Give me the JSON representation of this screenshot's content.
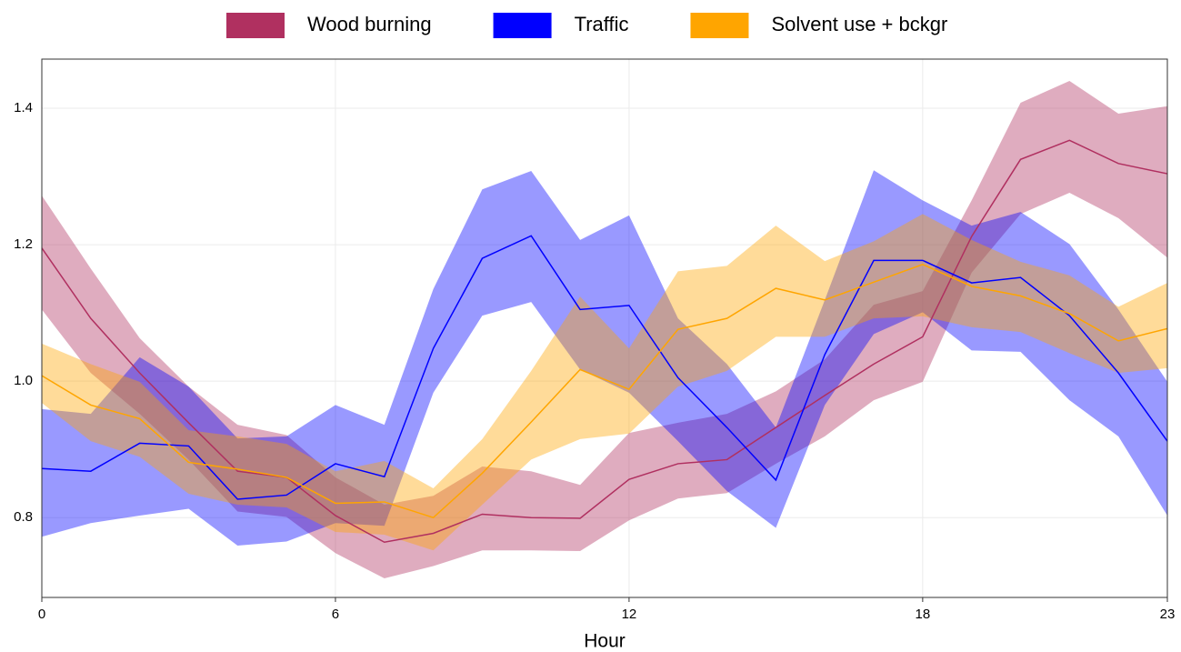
{
  "chart_data": {
    "type": "line-band",
    "xlabel": "Hour",
    "x": [
      0,
      1,
      2,
      3,
      4,
      5,
      6,
      7,
      8,
      9,
      10,
      11,
      12,
      13,
      14,
      15,
      16,
      17,
      18,
      19,
      20,
      21,
      22,
      23
    ],
    "xlim": [
      0,
      23
    ],
    "xticks": [
      0,
      6,
      12,
      18,
      23
    ],
    "ylim": [
      0.683,
      1.472
    ],
    "yticks": [
      {
        "value": 0.8,
        "label": "0.8"
      },
      {
        "value": 1.0,
        "label": "1.0"
      },
      {
        "value": 1.2,
        "label": "1.2"
      },
      {
        "value": 1.4,
        "label": "1.4"
      }
    ],
    "grid": true,
    "legend": "top",
    "series": [
      {
        "name": "Wood burning",
        "color": "#b03060",
        "values": [
          1.195,
          1.092,
          1.012,
          0.939,
          0.868,
          0.859,
          0.803,
          0.764,
          0.777,
          0.805,
          0.8,
          0.799,
          0.856,
          0.879,
          0.885,
          0.932,
          0.979,
          1.025,
          1.065,
          1.212,
          1.325,
          1.353,
          1.319,
          1.304
        ],
        "upper": [
          1.272,
          1.165,
          1.063,
          0.992,
          0.936,
          0.921,
          0.859,
          0.819,
          0.832,
          0.875,
          0.868,
          0.848,
          0.924,
          0.939,
          0.952,
          0.985,
          1.032,
          1.112,
          1.132,
          1.265,
          1.408,
          1.44,
          1.392,
          1.403
        ],
        "lower": [
          1.105,
          1.012,
          0.952,
          0.885,
          0.809,
          0.801,
          0.748,
          0.711,
          0.729,
          0.752,
          0.752,
          0.751,
          0.796,
          0.828,
          0.836,
          0.879,
          0.919,
          0.972,
          0.999,
          1.159,
          1.245,
          1.276,
          1.239,
          1.181
        ]
      },
      {
        "name": "Traffic",
        "color": "#0000ff",
        "values": [
          0.872,
          0.868,
          0.909,
          0.905,
          0.827,
          0.833,
          0.879,
          0.86,
          1.048,
          1.18,
          1.213,
          1.105,
          1.111,
          1.005,
          0.932,
          0.855,
          1.039,
          1.177,
          1.177,
          1.144,
          1.152,
          1.096,
          1.012,
          0.912
        ],
        "upper": [
          0.959,
          0.952,
          1.035,
          0.992,
          0.916,
          0.919,
          0.965,
          0.936,
          1.135,
          1.281,
          1.308,
          1.207,
          1.243,
          1.092,
          1.025,
          0.932,
          1.119,
          1.309,
          1.265,
          1.228,
          1.248,
          1.201,
          1.105,
          0.999
        ],
        "lower": [
          0.772,
          0.792,
          0.803,
          0.813,
          0.759,
          0.765,
          0.792,
          0.788,
          0.983,
          1.096,
          1.116,
          1.017,
          0.983,
          0.912,
          0.839,
          0.785,
          0.965,
          1.069,
          1.101,
          1.045,
          1.043,
          0.972,
          0.919,
          0.803
        ]
      },
      {
        "name": "Solvent use + bckgr",
        "color": "#ffa500",
        "values": [
          1.008,
          0.965,
          0.945,
          0.881,
          0.871,
          0.859,
          0.821,
          0.823,
          0.8,
          0.865,
          0.94,
          1.017,
          0.988,
          1.076,
          1.092,
          1.136,
          1.119,
          1.145,
          1.171,
          1.139,
          1.125,
          1.099,
          1.059,
          1.077
        ],
        "upper": [
          1.055,
          1.025,
          0.999,
          0.928,
          0.919,
          0.908,
          0.868,
          0.883,
          0.843,
          0.915,
          1.015,
          1.124,
          1.048,
          1.161,
          1.169,
          1.228,
          1.176,
          1.205,
          1.245,
          1.207,
          1.175,
          1.155,
          1.109,
          1.144
        ],
        "lower": [
          0.968,
          0.912,
          0.889,
          0.835,
          0.819,
          0.815,
          0.779,
          0.775,
          0.752,
          0.819,
          0.885,
          0.915,
          0.923,
          0.992,
          1.015,
          1.065,
          1.065,
          1.092,
          1.095,
          1.079,
          1.072,
          1.041,
          1.012,
          1.019
        ]
      }
    ]
  }
}
